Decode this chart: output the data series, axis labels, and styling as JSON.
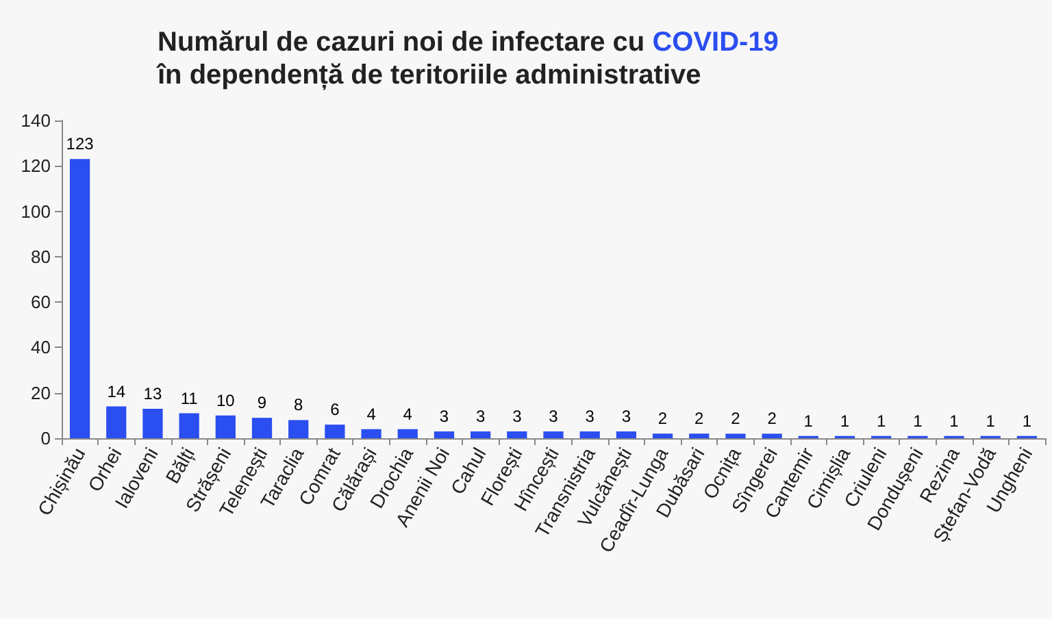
{
  "chart_data": {
    "type": "bar",
    "title": "Numărul de cazuri noi de infectare cu COVID-19\nîn dependență de teritoriile administrative",
    "categories": [
      "Chișinău",
      "Orhei",
      "Ialoveni",
      "Bălți",
      "Strășeni",
      "Telenești",
      "Taraclia",
      "Comrat",
      "Călărași",
      "Drochia",
      "Anenii Noi",
      "Cahul",
      "Florești",
      "Hîncești",
      "Transnistria",
      "Vulcănești",
      "Ceadîr-Lunga",
      "Dubăsari",
      "Ocnița",
      "Sîngerei",
      "Cantemir",
      "Cimișlia",
      "Criuleni",
      "Dondușeni",
      "Rezina",
      "Ștefan-Vodă",
      "Ungheni"
    ],
    "values": [
      123,
      14,
      13,
      11,
      10,
      9,
      8,
      6,
      4,
      4,
      3,
      3,
      3,
      3,
      3,
      3,
      2,
      2,
      2,
      2,
      1,
      1,
      1,
      1,
      1,
      1,
      1
    ],
    "color": "#2b4ef0",
    "ylim": [
      0,
      140
    ],
    "yticks": [
      0,
      20,
      40,
      60,
      80,
      100,
      120,
      140
    ],
    "grid": false,
    "data_labels": true
  }
}
